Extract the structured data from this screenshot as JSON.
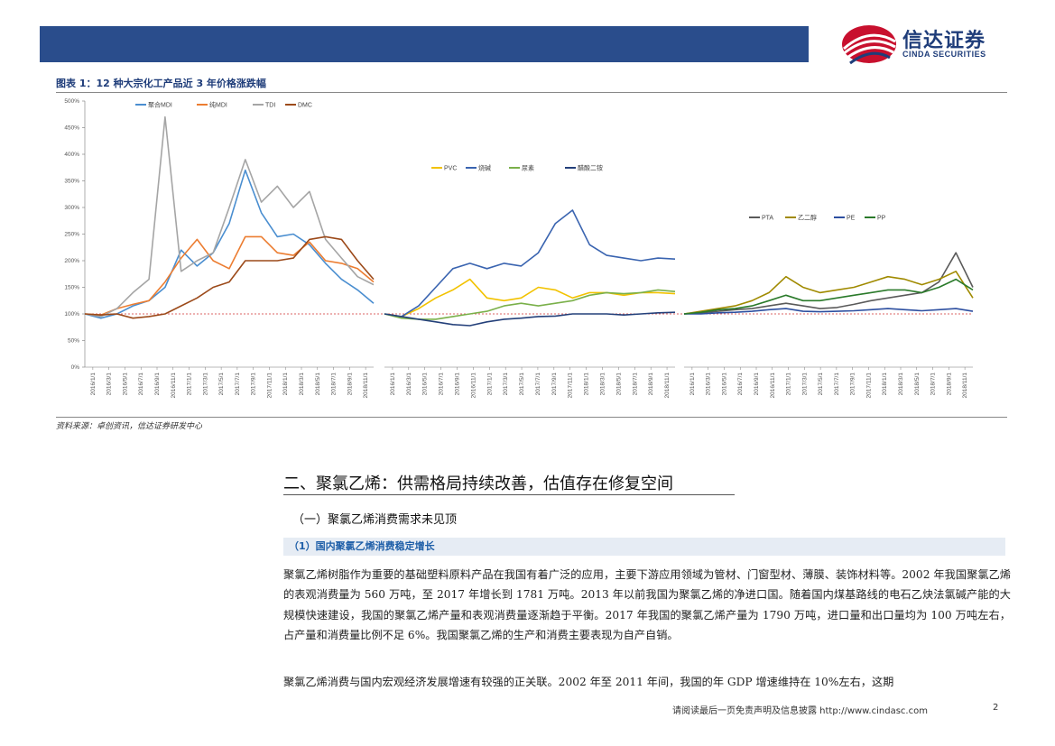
{
  "header": {
    "logo_cn": "信达证券",
    "logo_en": "CINDA SECURITIES"
  },
  "figure": {
    "title": "图表 1：12 种大宗化工产品近 3 年价格涨跌幅",
    "source": "资料来源：卓创资讯，信达证券研发中心"
  },
  "chart_data": [
    {
      "type": "line",
      "yticks": [
        "0%",
        "50%",
        "100%",
        "150%",
        "200%",
        "250%",
        "300%",
        "350%",
        "400%",
        "450%",
        "500%"
      ],
      "ylim": [
        0,
        500
      ],
      "xticks": [
        "2016/1/1",
        "2016/3/1",
        "2016/5/1",
        "2016/7/1",
        "2016/9/1",
        "2016/11/1",
        "2017/1/1",
        "2017/3/1",
        "2017/5/1",
        "2017/7/1",
        "2017/9/1",
        "2017/11/1",
        "2018/1/1",
        "2018/3/1",
        "2018/5/1",
        "2018/7/1",
        "2018/9/1",
        "2018/11/1"
      ],
      "legend_position": "top",
      "series": [
        {
          "name": "聚合MDI",
          "color": "#4a8ed0",
          "values": [
            100,
            92,
            100,
            115,
            125,
            150,
            220,
            190,
            215,
            270,
            370,
            290,
            245,
            250,
            230,
            195,
            165,
            145,
            120
          ]
        },
        {
          "name": "纯MDI",
          "color": "#ec7d31",
          "values": [
            100,
            98,
            110,
            118,
            125,
            160,
            205,
            240,
            200,
            185,
            245,
            245,
            215,
            210,
            235,
            200,
            195,
            185,
            160
          ]
        },
        {
          "name": "TDI",
          "color": "#a5a5a5",
          "values": [
            100,
            95,
            110,
            140,
            165,
            470,
            180,
            200,
            215,
            300,
            390,
            310,
            340,
            300,
            330,
            240,
            205,
            170,
            155
          ]
        },
        {
          "name": "DMC",
          "color": "#9c4a1a",
          "values": [
            100,
            98,
            100,
            92,
            95,
            100,
            115,
            130,
            150,
            160,
            200,
            200,
            200,
            205,
            240,
            245,
            240,
            200,
            165
          ]
        }
      ]
    },
    {
      "type": "line",
      "xticks": [
        "2016/1/1",
        "2016/3/1",
        "2016/5/1",
        "2016/7/1",
        "2016/9/1",
        "2016/11/1",
        "2017/1/1",
        "2017/3/1",
        "2017/5/1",
        "2017/7/1",
        "2017/9/1",
        "2017/11/1",
        "2018/1/1",
        "2018/3/1",
        "2018/5/1",
        "2018/7/1",
        "2018/9/1",
        "2018/11/1"
      ],
      "legend_position": "top",
      "series": [
        {
          "name": "PVC",
          "color": "#f2c200",
          "values": [
            100,
            95,
            110,
            130,
            145,
            165,
            130,
            125,
            130,
            150,
            145,
            130,
            140,
            140,
            135,
            140,
            140,
            138
          ]
        },
        {
          "name": "烧碱",
          "color": "#3a64b0",
          "values": [
            100,
            95,
            115,
            150,
            185,
            195,
            185,
            195,
            190,
            215,
            270,
            295,
            230,
            210,
            205,
            200,
            205,
            203
          ]
        },
        {
          "name": "尿素",
          "color": "#7ab04a",
          "values": [
            100,
            92,
            90,
            90,
            95,
            100,
            105,
            115,
            120,
            115,
            120,
            125,
            135,
            140,
            138,
            140,
            145,
            142
          ]
        },
        {
          "name": "醋酸二铵",
          "color": "#24407a",
          "values": [
            100,
            95,
            90,
            85,
            80,
            78,
            85,
            90,
            92,
            95,
            96,
            100,
            100,
            100,
            98,
            100,
            102,
            103
          ]
        }
      ]
    },
    {
      "type": "line",
      "xticks": [
        "2016/1/1",
        "2016/3/1",
        "2016/5/1",
        "2016/7/1",
        "2016/9/1",
        "2016/11/1",
        "2017/1/1",
        "2017/3/1",
        "2017/5/1",
        "2017/7/1",
        "2017/9/1",
        "2017/11/1",
        "2018/1/1",
        "2018/3/1",
        "2018/5/1",
        "2018/7/1",
        "2018/9/1",
        "2018/11/1"
      ],
      "legend_position": "top",
      "series": [
        {
          "name": "PTA",
          "color": "#5a5a5a",
          "values": [
            100,
            102,
            105,
            108,
            110,
            115,
            120,
            115,
            110,
            112,
            118,
            125,
            130,
            135,
            140,
            160,
            215,
            150
          ]
        },
        {
          "name": "乙二醇",
          "color": "#a08a00",
          "values": [
            100,
            105,
            110,
            115,
            125,
            140,
            170,
            150,
            140,
            145,
            150,
            160,
            170,
            165,
            155,
            165,
            180,
            130
          ]
        },
        {
          "name": "PE",
          "color": "#2d4fa0",
          "values": [
            100,
            100,
            102,
            103,
            105,
            108,
            110,
            105,
            104,
            105,
            106,
            108,
            110,
            108,
            106,
            108,
            110,
            105
          ]
        },
        {
          "name": "PP",
          "color": "#2a7a2a",
          "values": [
            100,
            103,
            108,
            110,
            115,
            125,
            135,
            125,
            125,
            130,
            135,
            140,
            145,
            145,
            140,
            150,
            165,
            145
          ]
        }
      ]
    }
  ],
  "section": {
    "h2": "二、聚氯乙烯：供需格局持续改善，估值存在修复空间",
    "h3": "（一）聚氯乙烯消费需求未见顶",
    "h4": "（1）国内聚氯乙烯消费稳定增长",
    "p1": "聚氯乙烯树脂作为重要的基础塑料原料产品在我国有着广泛的应用，主要下游应用领域为管材、门窗型材、薄膜、装饰材料等。2002 年我国聚氯乙烯的表观消费量为 560 万吨，至 2017 年增长到 1781 万吨。2013 年以前我国为聚氯乙烯的净进口国。随着国内煤基路线的电石乙炔法氯碱产能的大规模快速建设，我国的聚氯乙烯产量和表观消费量逐渐趋于平衡。2017 年我国的聚氯乙烯产量为 1790 万吨，进口量和出口量均为 100 万吨左右，占产量和消费量比例不足 6%。我国聚氯乙烯的生产和消费主要表现为自产自销。",
    "p2": "聚氯乙烯消费与国内宏观经济发展增速有较强的正关联。2002 年至 2011 年间，我国的年 GDP 增速维持在 10%左右，这期"
  },
  "footer": {
    "disclaimer": "请阅读最后一页免责声明及信息披露 http://www.cindasc.com",
    "page": "2"
  }
}
